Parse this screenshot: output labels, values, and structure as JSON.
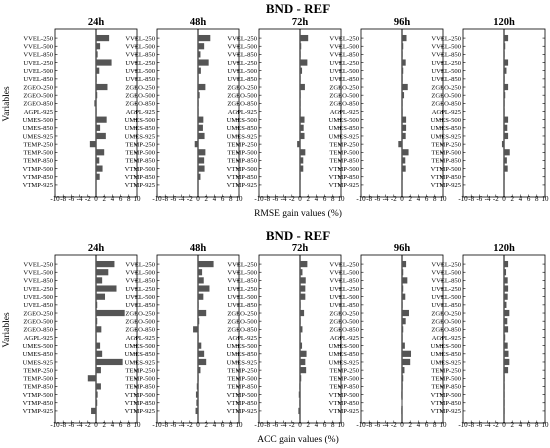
{
  "chart_data": [
    {
      "type": "bar",
      "orientation": "horizontal",
      "title": "BND - REF",
      "xlabel": "RMSE gain values (%)",
      "ylabel": "Variables",
      "xlim": [
        -10,
        10
      ],
      "xticks": [
        "-10",
        "-8",
        "-6",
        "-4",
        "-2",
        "0",
        "2",
        "4",
        "6",
        "8",
        "10"
      ],
      "categories": [
        "VVEL-250",
        "VVEL-500",
        "VVEL-850",
        "UVEL-250",
        "UVEL-500",
        "UVEL-850",
        "ZGEO-250",
        "ZGEO-500",
        "ZGEO-850",
        "AGPL-925",
        "UMES-500",
        "UMES-850",
        "UMES-925",
        "TEMP-250",
        "TEMP-500",
        "TEMP-850",
        "VTMP-500",
        "VTMP-850",
        "VTMP-925"
      ],
      "series": [
        {
          "panel": "24h",
          "values": [
            3.2,
            1.0,
            0.4,
            3.8,
            0.8,
            0.2,
            2.8,
            0.3,
            -0.4,
            0.1,
            2.6,
            1.0,
            2.4,
            -1.5,
            2.0,
            0.8,
            1.6,
            0.9,
            0
          ]
        },
        {
          "panel": "48h",
          "values": [
            3.0,
            1.5,
            0.6,
            2.6,
            0.7,
            0.1,
            1.8,
            0.4,
            0.2,
            0.1,
            1.3,
            1.2,
            1.6,
            -0.8,
            1.8,
            1.5,
            1.6,
            0.6,
            0
          ]
        },
        {
          "panel": "72h",
          "values": [
            2.0,
            0.3,
            0.2,
            1.8,
            0.5,
            0.1,
            1.2,
            0.2,
            0.1,
            0.1,
            1.1,
            0.9,
            1.1,
            -0.7,
            1.3,
            0.8,
            0.8,
            0.2,
            0
          ]
        },
        {
          "panel": "96h",
          "values": [
            1.1,
            0.3,
            0.2,
            0.9,
            0.3,
            0.1,
            1.4,
            0.5,
            0.1,
            0.1,
            1.0,
            1.0,
            0.9,
            -0.9,
            1.6,
            0.8,
            0.9,
            0.2,
            0
          ]
        },
        {
          "panel": "120h",
          "values": [
            1.0,
            0.3,
            0.2,
            1.0,
            0.6,
            0.2,
            1.0,
            0.3,
            0.2,
            0.1,
            1.0,
            0.8,
            1.0,
            -0.5,
            1.4,
            0.7,
            0.9,
            0.2,
            0
          ]
        }
      ]
    },
    {
      "type": "bar",
      "orientation": "horizontal",
      "title": "BND - REF",
      "xlabel": "ACC gain values (%)",
      "ylabel": "Variables",
      "xlim": [
        -10,
        10
      ],
      "xticks": [
        "-10",
        "-8",
        "-6",
        "-4",
        "-2",
        "0",
        "2",
        "4",
        "6",
        "8",
        "10"
      ],
      "categories": [
        "VVEL-250",
        "VVEL-500",
        "VVEL-850",
        "UVEL-250",
        "UVEL-500",
        "UVEL-850",
        "ZGEO-250",
        "ZGEO-500",
        "ZGEO-850",
        "AGPL-925",
        "UMES-500",
        "UMES-850",
        "UMES-925",
        "TEMP-250",
        "TEMP-500",
        "TEMP-850",
        "VTMP-500",
        "VTMP-850",
        "VTMP-925"
      ],
      "series": [
        {
          "panel": "24h",
          "values": [
            4.5,
            3.0,
            1.5,
            5.0,
            2.2,
            0.3,
            7.0,
            0.3,
            1.3,
            0.1,
            1.0,
            1.5,
            6.5,
            1.2,
            -2.0,
            1.2,
            0.4,
            0.3,
            -1.2
          ]
        },
        {
          "panel": "48h",
          "values": [
            3.8,
            1.0,
            1.4,
            2.8,
            1.3,
            0.2,
            2.0,
            0.3,
            -1.2,
            0.2,
            0.8,
            1.5,
            2.0,
            0.6,
            0.2,
            -0.3,
            -0.5,
            -0.4,
            -0.6
          ]
        },
        {
          "panel": "72h",
          "values": [
            1.8,
            0.6,
            1.4,
            1.3,
            1.3,
            0.2,
            1.0,
            0.2,
            0.6,
            0.2,
            0.5,
            1.6,
            1.3,
            1.5,
            0.3,
            -0.2,
            -0.3,
            -0.2,
            -0.4
          ]
        },
        {
          "panel": "96h",
          "values": [
            1.0,
            0.3,
            1.3,
            0.3,
            0.8,
            0.2,
            1.7,
            0.9,
            0.3,
            0.1,
            0.7,
            2.2,
            2.0,
            0.6,
            0.3,
            0.2,
            -0.2,
            -0.1,
            -0.2
          ]
        },
        {
          "panel": "120h",
          "values": [
            1.0,
            0.5,
            0.9,
            1.0,
            0.9,
            0.6,
            1.3,
            0.8,
            1.0,
            0.3,
            0.9,
            1.1,
            1.3,
            1.0,
            0.2,
            0.2,
            0.1,
            0.1,
            0.1
          ]
        }
      ]
    }
  ]
}
